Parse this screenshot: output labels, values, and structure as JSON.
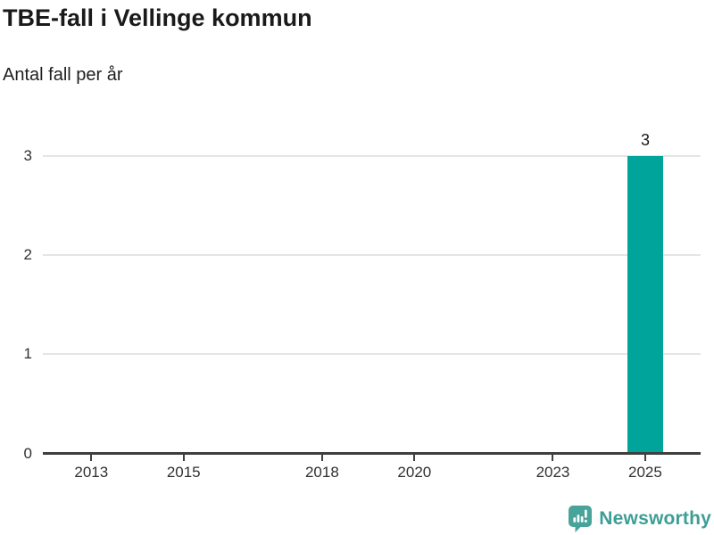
{
  "header": {
    "title": "TBE-fall i Vellinge kommun",
    "subtitle": "Antal fall per år"
  },
  "chart_data": {
    "type": "bar",
    "title": "TBE-fall i Vellinge kommun",
    "subtitle": "Antal fall per år",
    "xlabel": "",
    "ylabel": "",
    "x_ticks": [
      2013,
      2015,
      2018,
      2020,
      2023,
      2025
    ],
    "y_ticks": [
      0,
      1,
      2,
      3
    ],
    "xlim": [
      2011.95,
      2026.2
    ],
    "ylim": [
      0,
      3
    ],
    "grid": "horizontal",
    "legend": "none",
    "bars": [
      {
        "x": 2025,
        "value": 3,
        "label": "3"
      }
    ],
    "bar_color": "#00a49a",
    "bar_width_years": 0.78
  },
  "branding": {
    "logo_text": "Newsworthy",
    "wordmark_color": "#3d9e95",
    "icon_color": "#48a39a",
    "icon_name": "newsworthy-chart-bubble-icon"
  },
  "colors": {
    "background": "#ffffff",
    "title_text": "#1a1a1a",
    "axis_line": "#3f3f3f",
    "gridline": "#e5e5e5",
    "tick_label": "#303030"
  }
}
